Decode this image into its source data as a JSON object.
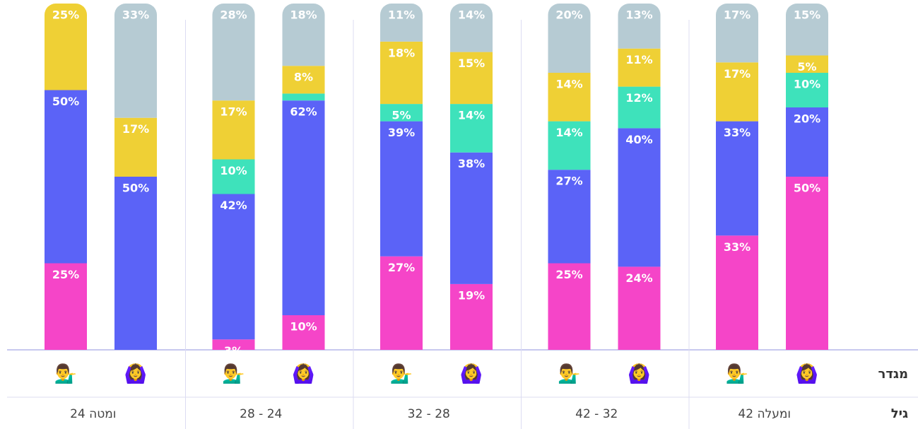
{
  "chart_data": {
    "type": "stacked_bar",
    "row_labels": {
      "gender": "מגדר",
      "age": "גיל"
    },
    "categories": [
      "24 ומטה",
      "28 - 24",
      "32 - 28",
      "42 - 32",
      "42 ומעלה"
    ],
    "genders": [
      "💁‍♂️",
      "🙆‍♀️"
    ],
    "ylim": [
      0,
      100
    ],
    "series": [
      {
        "color": "#f545c8",
        "values": [
          [
            25,
            0
          ],
          [
            3,
            10
          ],
          [
            27,
            19
          ],
          [
            25,
            24
          ],
          [
            33,
            50
          ]
        ],
        "value_labels": [
          [
            "25%",
            null
          ],
          [
            "3%",
            "10%"
          ],
          [
            "27%",
            "19%"
          ],
          [
            "25%",
            "24%"
          ],
          [
            "33%",
            "50%"
          ]
        ]
      },
      {
        "color": "#5b63f7",
        "values": [
          [
            50,
            50
          ],
          [
            42,
            62
          ],
          [
            39,
            38
          ],
          [
            27,
            40
          ],
          [
            33,
            20
          ]
        ],
        "value_labels": [
          [
            "50%",
            "50%"
          ],
          [
            "42%",
            "62%"
          ],
          [
            "39%",
            "38%"
          ],
          [
            "27%",
            "40%"
          ],
          [
            "33%",
            "20%"
          ]
        ]
      },
      {
        "color": "#3ee2bb",
        "values": [
          [
            0,
            0
          ],
          [
            10,
            2
          ],
          [
            5,
            14
          ],
          [
            14,
            12
          ],
          [
            0,
            10
          ]
        ],
        "value_labels": [
          [
            null,
            null
          ],
          [
            "10%",
            null
          ],
          [
            "5%",
            "14%"
          ],
          [
            "14%",
            "12%"
          ],
          [
            null,
            "10%"
          ]
        ]
      },
      {
        "color": "#efd035",
        "values": [
          [
            25,
            17
          ],
          [
            17,
            8
          ],
          [
            18,
            15
          ],
          [
            14,
            11
          ],
          [
            17,
            5
          ]
        ],
        "value_labels": [
          [
            "25%",
            "17%"
          ],
          [
            "17%",
            "8%"
          ],
          [
            "18%",
            "15%"
          ],
          [
            "14%",
            "11%"
          ],
          [
            "17%",
            "5%"
          ]
        ]
      },
      {
        "color": "#b6cbd3",
        "values": [
          [
            0,
            33
          ],
          [
            28,
            18
          ],
          [
            11,
            14
          ],
          [
            20,
            13
          ],
          [
            17,
            15
          ]
        ],
        "value_labels": [
          [
            null,
            "33%"
          ],
          [
            "28%",
            "18%"
          ],
          [
            "11%",
            "14%"
          ],
          [
            "20%",
            "13%"
          ],
          [
            "17%",
            "15%"
          ]
        ]
      }
    ]
  }
}
